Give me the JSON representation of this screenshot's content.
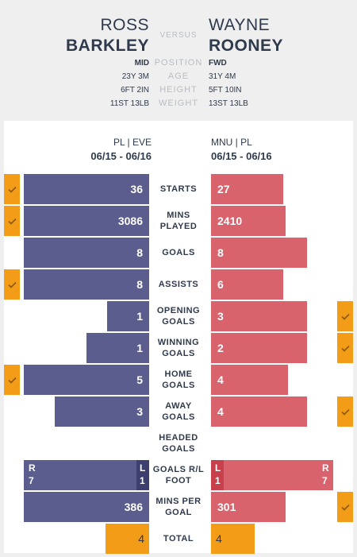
{
  "player_left": {
    "first_name": "ROSS",
    "last_name": "BARKLEY",
    "position": "MID",
    "age": "23Y 3M",
    "height": "6FT 2IN",
    "weight": "11ST 13LB",
    "competition": "PL | EVE",
    "season": "06/15 - 06/16"
  },
  "player_right": {
    "first_name": "WAYNE",
    "last_name": "ROONEY",
    "position": "FWD",
    "age": "31Y 4M",
    "height": "5FT 10IN",
    "weight": "13ST 13LB",
    "competition": "MNU | PL",
    "season": "06/15 - 06/16"
  },
  "labels": {
    "versus": "VERSUS",
    "position": "POSITION",
    "age": "AGE",
    "height": "HEIGHT",
    "weight": "WEIGHT"
  },
  "colors": {
    "left_bar": "#5b5d8e",
    "right_bar": "#d8636d",
    "winner_check": "#f39c18",
    "total_bar": "#f39c18"
  },
  "chart_data": {
    "type": "bar",
    "orientation": "horizontal-diverging",
    "series": [
      {
        "name": "ROSS BARKLEY"
      },
      {
        "name": "WAYNE ROONEY"
      }
    ],
    "rows": [
      {
        "label": "STARTS",
        "left": 36,
        "right": 27,
        "winner": "left",
        "left_text": "36",
        "right_text": "27"
      },
      {
        "label": "MINS PLAYED",
        "left": 3086,
        "right": 2410,
        "winner": "left",
        "left_text": "3086",
        "right_text": "2410"
      },
      {
        "label": "GOALS",
        "left": 8,
        "right": 8,
        "winner": "none",
        "left_text": "8",
        "right_text": "8"
      },
      {
        "label": "ASSISTS",
        "left": 8,
        "right": 6,
        "winner": "left",
        "left_text": "8",
        "right_text": "6"
      },
      {
        "label": "OPENING GOALS",
        "left": 1,
        "right": 3,
        "winner": "right",
        "left_text": "1",
        "right_text": "3"
      },
      {
        "label": "WINNING GOALS",
        "left": 1,
        "right": 2,
        "winner": "right",
        "left_text": "1",
        "right_text": "2"
      },
      {
        "label": "HOME GOALS",
        "left": 5,
        "right": 4,
        "winner": "left",
        "left_text": "5",
        "right_text": "4"
      },
      {
        "label": "AWAY GOALS",
        "left": 3,
        "right": 4,
        "winner": "right",
        "left_text": "3",
        "right_text": "4"
      },
      {
        "label": "HEADED GOALS",
        "left": 0,
        "right": 0,
        "winner": "none",
        "left_text": "",
        "right_text": ""
      },
      {
        "label": "GOALS R/L FOOT",
        "type": "foot",
        "left_r": 7,
        "left_l": 1,
        "right_l": 1,
        "right_r": 7,
        "winner": "none",
        "left_r_label": "R",
        "left_l_label": "L",
        "right_l_label": "L",
        "right_r_label": "R",
        "left_r_text": "7",
        "left_l_text": "1",
        "right_l_text": "1",
        "right_r_text": "7"
      },
      {
        "label": "MINS PER GOAL",
        "left": 386,
        "right": 301,
        "winner": "right",
        "left_text": "386",
        "right_text": "301"
      },
      {
        "label": "TOTAL",
        "type": "total",
        "left": 4,
        "right": 4,
        "winner": "none",
        "left_text": "4",
        "right_text": "4"
      }
    ]
  }
}
